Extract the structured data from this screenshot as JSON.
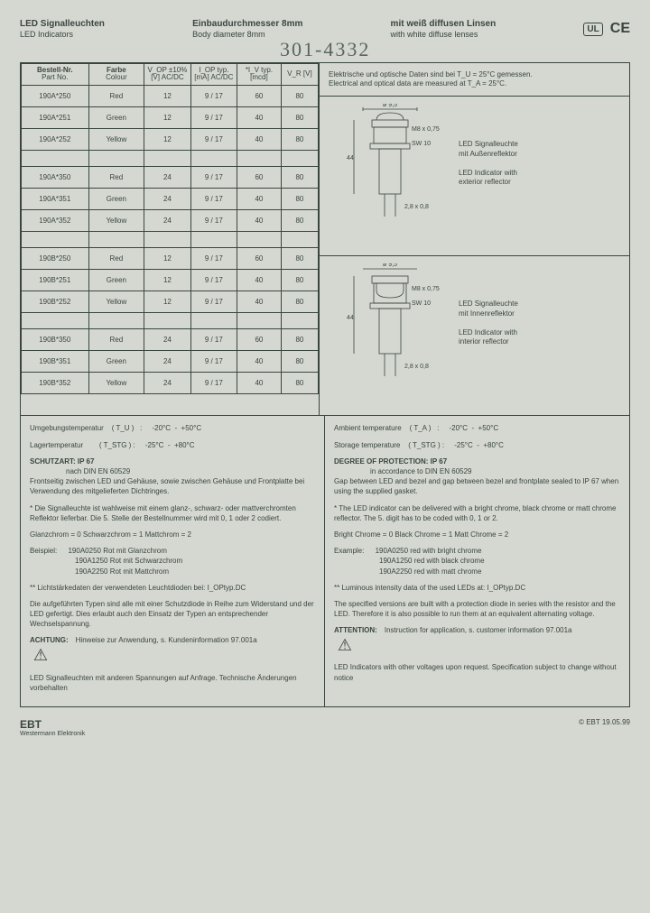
{
  "header": {
    "de_title": "LED Signalleuchten",
    "en_title": "LED Indicators",
    "de_diameter": "Einbaudurchmesser 8mm",
    "en_diameter": "Body diameter 8mm",
    "de_lens": "mit weiß diffusen Linsen",
    "en_lens": "with white diffuse lenses",
    "handwritten": "301-4332"
  },
  "cert": {
    "ul": "UL",
    "ce": "CE"
  },
  "table": {
    "headers": {
      "part_de": "Bestell-Nr.",
      "part_en": "Part No.",
      "color_de": "Farbe",
      "color_en": "Colour",
      "vop": "V_OP ±10% [V] AC/DC",
      "iop": "I_OP typ. [mA] AC/DC",
      "iv": "*I_V typ. [mcd]",
      "vr": "V_R [V]"
    },
    "rows": [
      {
        "pn": "190A*250",
        "col": "Red",
        "vop": "12",
        "iop": "9 / 17",
        "iv": "60",
        "vr": "80"
      },
      {
        "pn": "190A*251",
        "col": "Green",
        "vop": "12",
        "iop": "9 / 17",
        "iv": "40",
        "vr": "80"
      },
      {
        "pn": "190A*252",
        "col": "Yellow",
        "vop": "12",
        "iop": "9 / 17",
        "iv": "40",
        "vr": "80"
      },
      {
        "pn": "190A*350",
        "col": "Red",
        "vop": "24",
        "iop": "9 / 17",
        "iv": "60",
        "vr": "80"
      },
      {
        "pn": "190A*351",
        "col": "Green",
        "vop": "24",
        "iop": "9 / 17",
        "iv": "40",
        "vr": "80"
      },
      {
        "pn": "190A*352",
        "col": "Yellow",
        "vop": "24",
        "iop": "9 / 17",
        "iv": "40",
        "vr": "80"
      },
      {
        "pn": "190B*250",
        "col": "Red",
        "vop": "12",
        "iop": "9 / 17",
        "iv": "60",
        "vr": "80"
      },
      {
        "pn": "190B*251",
        "col": "Green",
        "vop": "12",
        "iop": "9 / 17",
        "iv": "40",
        "vr": "80"
      },
      {
        "pn": "190B*252",
        "col": "Yellow",
        "vop": "12",
        "iop": "9 / 17",
        "iv": "40",
        "vr": "80"
      },
      {
        "pn": "190B*350",
        "col": "Red",
        "vop": "24",
        "iop": "9 / 17",
        "iv": "60",
        "vr": "80"
      },
      {
        "pn": "190B*351",
        "col": "Green",
        "vop": "24",
        "iop": "9 / 17",
        "iv": "40",
        "vr": "80"
      },
      {
        "pn": "190B*352",
        "col": "Yellow",
        "vop": "24",
        "iop": "9 / 17",
        "iv": "40",
        "vr": "80"
      }
    ],
    "spacer_after": [
      2,
      5,
      8
    ]
  },
  "measure": {
    "de": "Elektrische und optische Daten sind bei T_U = 25°C gemessen.",
    "en": "Electrical and optical data are measured at T_A = 25°C."
  },
  "diagrams": {
    "d1": {
      "de1": "LED Signalleuchte",
      "de2": "mit Außenreflektor",
      "en1": "LED Indicator with",
      "en2": "exterior reflector",
      "dims": {
        "top": "ø 9,5",
        "thread": "M8 x 0,75",
        "nut": "SW 10",
        "height": "44",
        "pins": "2,8 x 0,8"
      }
    },
    "d2": {
      "de1": "LED Signalleuchte",
      "de2": "mit Innenreflektor",
      "en1": "LED Indicator with",
      "en2": "interior reflector",
      "dims": {
        "top": "ø 9,5",
        "thread": "M8 x 0,75",
        "nut": "SW 10",
        "height": "44",
        "pins": "2,8 x 0,8"
      }
    }
  },
  "notes_de": {
    "temp1": "Umgebungstemperatur    ( T_U )   :     -20°C  -  +50°C",
    "temp2": "Lagertemperatur        ( T_STG ) :     -25°C  -  +80°C",
    "prot_hdr": "SCHUTZART:  IP 67",
    "prot_sub": "nach DIN EN 60529",
    "prot_txt": "Frontseitig zwischen LED und Gehäuse, sowie zwischen Gehäuse und Frontplatte bei Verwendung des mitgelieferten Dichtringes.",
    "refl": "* Die Signalleuchte ist wahlweise mit einem glanz-, schwarz- oder mattverchromten Reflektor lieferbar. Die 5. Stelle der Bestellnummer wird mit 0, 1 oder 2 codiert.",
    "codes": "Glanzchrom = 0     Schwarzchrom = 1     Mattchrom = 2",
    "ex_hdr": "Beispiel:",
    "ex1": "190A0250  Rot mit Glanzchrom",
    "ex2": "190A1250  Rot mit Schwarzchrom",
    "ex3": "190A2250  Rot mit Mattchrom",
    "lum": "** Lichtstärkedaten der verwendeten Leuchtdioden bei: I_OPtyp.DC",
    "diode": "Die aufgeführten Typen sind alle mit einer Schutzdiode in Reihe zum Widerstand und der LED gefertigt. Dies erlaubt auch den Einsatz der Typen an entsprechender Wechselspannung.",
    "warn_hdr": "ACHTUNG:",
    "warn_txt": "Hinweise zur Anwendung, s. Kundeninformation 97.001a",
    "foot": "LED Signalleuchten mit anderen Spannungen auf Anfrage. Technische Änderungen vorbehalten"
  },
  "notes_en": {
    "temp1": "Ambient temperature    ( T_A )   :     -20°C  -  +50°C",
    "temp2": "Storage temperature    ( T_STG ) :     -25°C  -  +80°C",
    "prot_hdr": "DEGREE OF PROTECTION:  IP 67",
    "prot_sub": "in accordance to DIN EN 60529",
    "prot_txt": "Gap between LED and bezel and gap between bezel and frontplate sealed to IP 67 when using the supplied gasket.",
    "refl": "* The LED indicator can be delivered with a bright chrome, black chrome or matt chrome reflector. The 5. digit has to be coded with 0, 1 or 2.",
    "codes": "Bright Chrome = 0    Black Chrome = 1    Matt Chrome = 2",
    "ex_hdr": "Example:",
    "ex1": "190A0250  red with bright chrome",
    "ex2": "190A1250  red with black chrome",
    "ex3": "190A2250  red with matt chrome",
    "lum": "** Luminous intensity data of the used LEDs at: I_OPtyp.DC",
    "diode": "The specified versions are built with a protection diode in series with the resistor and the LED. Therefore it is also possible to run them at an equivalent alternating voltage.",
    "warn_hdr": "ATTENTION:",
    "warn_txt": "Instruction for application, s. customer information 97.001a",
    "foot": "LED Indicators with other voltages upon request. Specification subject to change without notice"
  },
  "footer": {
    "company": "EBT",
    "sub": "Westermann Elektronik",
    "copy": "© EBT  19.05.99"
  },
  "colors": {
    "bg": "#d4d8d0",
    "text": "#3a4540",
    "border": "#3a4540"
  }
}
